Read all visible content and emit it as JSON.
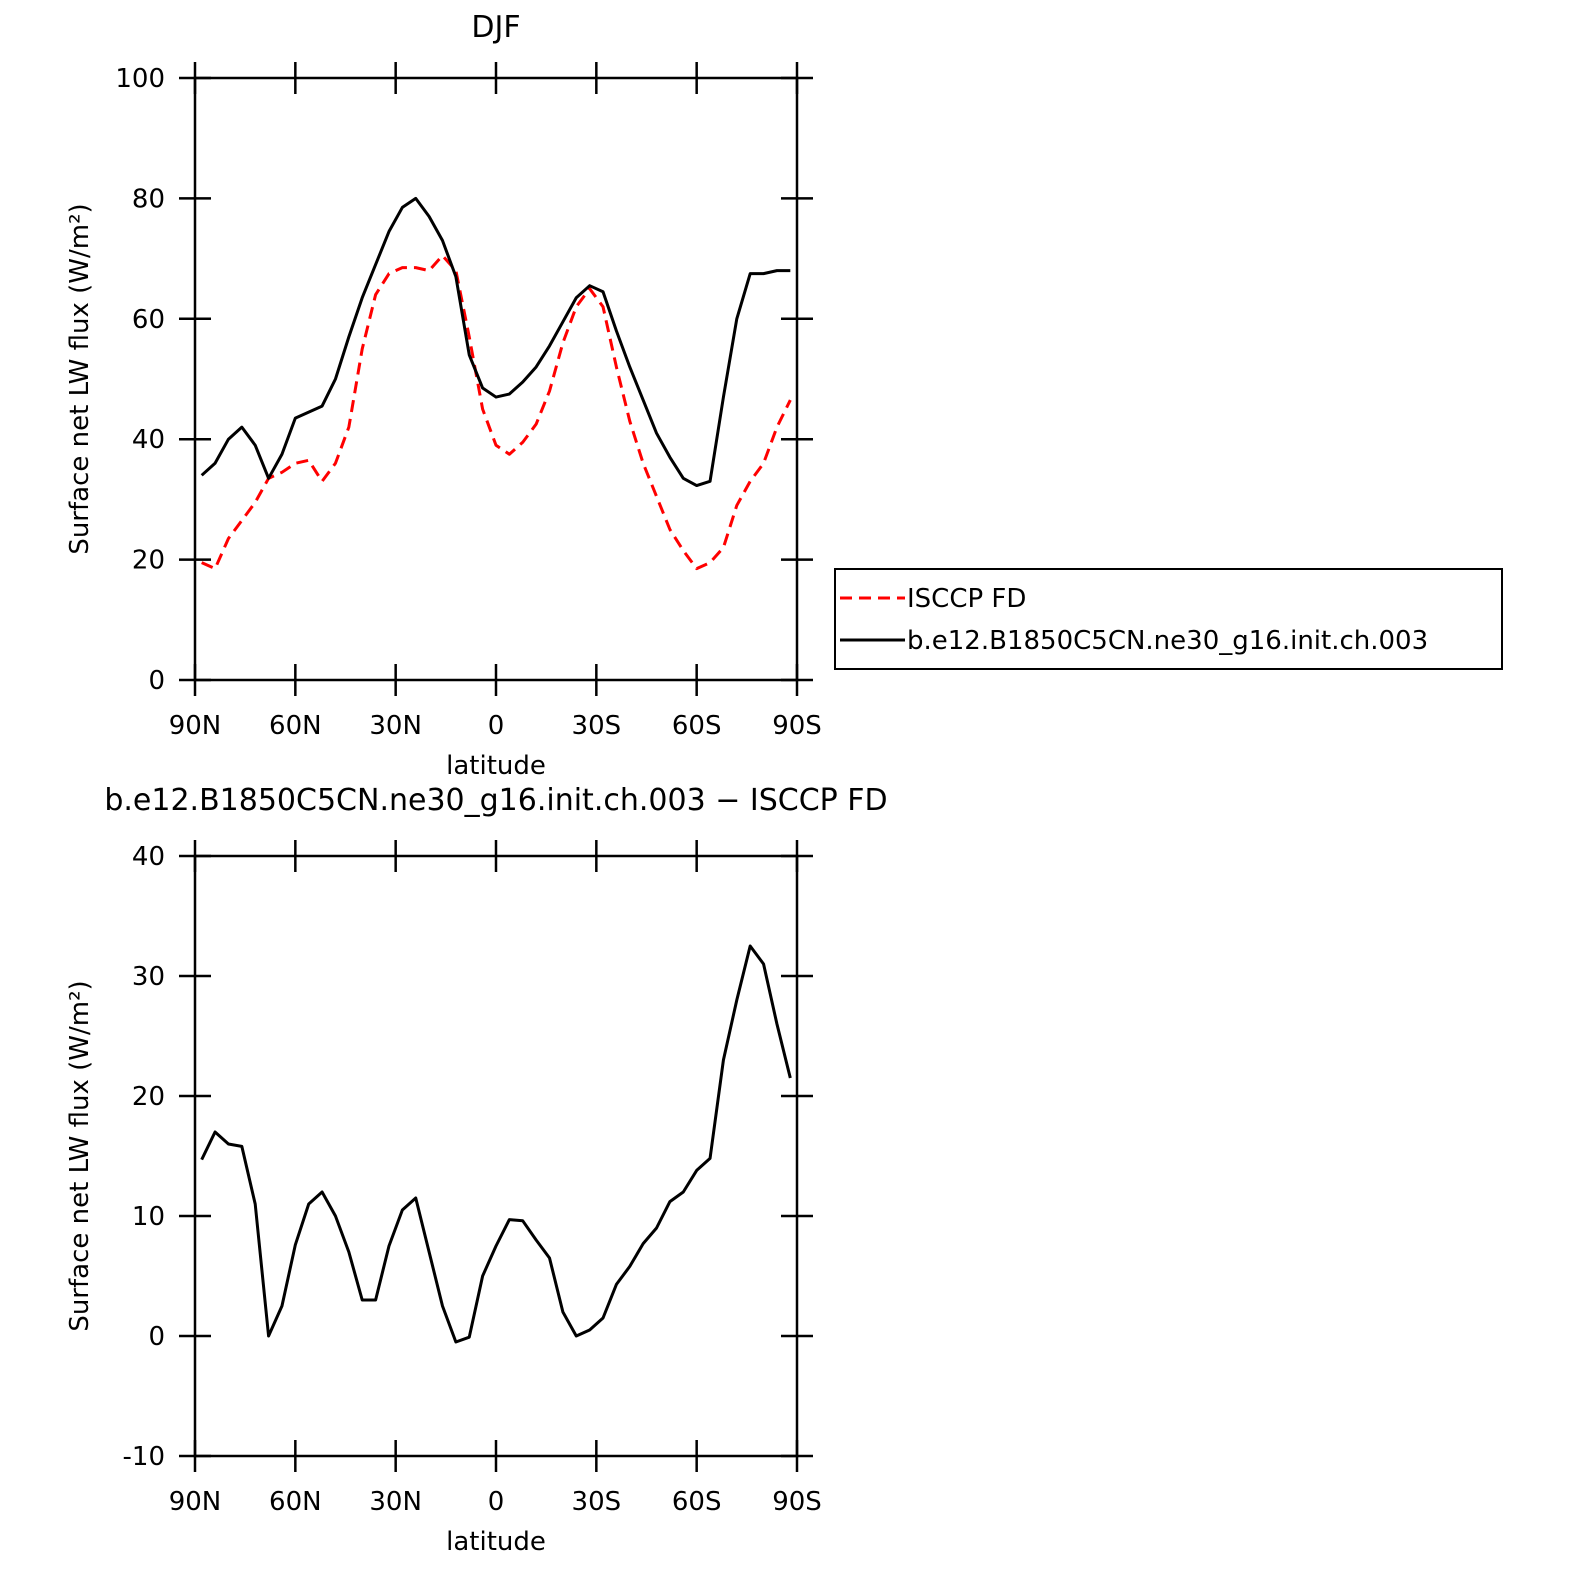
{
  "chart_data": [
    {
      "type": "line",
      "title": "DJF",
      "xlabel": "latitude",
      "ylabel": "Surface net LW flux (W/m²)",
      "x": [
        88,
        84,
        80,
        76,
        72,
        68,
        64,
        60,
        56,
        52,
        48,
        44,
        40,
        36,
        32,
        28,
        24,
        20,
        16,
        12,
        8,
        4,
        0,
        -4,
        -8,
        -12,
        -16,
        -20,
        -24,
        -28,
        -32,
        -36,
        -40,
        -44,
        -48,
        -52,
        -56,
        -60,
        -64,
        -68,
        -72,
        -76,
        -80,
        -84,
        -88
      ],
      "xlim": [
        90,
        -90
      ],
      "xticks": [
        {
          "value": 90,
          "label": "90N"
        },
        {
          "value": 60,
          "label": "60N"
        },
        {
          "value": 30,
          "label": "30N"
        },
        0,
        {
          "value": -30,
          "label": "30S"
        },
        {
          "value": -60,
          "label": "60S"
        },
        {
          "value": -90,
          "label": "90S"
        }
      ],
      "ylim": [
        0,
        100
      ],
      "yticks": [
        0,
        20,
        40,
        60,
        80,
        100
      ],
      "series": [
        {
          "name": "ISCCP FD",
          "color": "#ff0000",
          "dashed": true,
          "values": [
            19.5,
            18.5,
            23.5,
            26.5,
            29.5,
            33.5,
            34.5,
            36,
            36.5,
            33,
            36,
            42,
            55,
            64,
            67.5,
            68.5,
            68.5,
            68,
            70.5,
            68,
            57,
            45,
            39,
            37.5,
            39.5,
            42.5,
            48,
            56,
            62,
            65,
            62,
            52,
            43,
            36,
            30.5,
            25,
            21.5,
            18.5,
            19.5,
            22,
            29,
            33,
            36,
            42,
            46.5
          ]
        },
        {
          "name": "b.e12.B1850C5CN.ne30_g16.init.ch.003",
          "color": "#000000",
          "dashed": false,
          "values": [
            34,
            36,
            40,
            42,
            39,
            33.5,
            37.5,
            43.5,
            44.5,
            45.5,
            50,
            57,
            63.5,
            69,
            74.5,
            78.5,
            80,
            77,
            73,
            67,
            54,
            48.5,
            47,
            47.5,
            49.5,
            52,
            55.5,
            59.5,
            63.5,
            65.5,
            64.5,
            58,
            52,
            46.5,
            41,
            37,
            33.5,
            32.3,
            33,
            47,
            60,
            67.5,
            67.5,
            68,
            68
          ]
        }
      ]
    },
    {
      "type": "line",
      "title": "b.e12.B1850C5CN.ne30_g16.init.ch.003 − ISCCP FD",
      "xlabel": "latitude",
      "ylabel": "Surface net LW flux (W/m²)",
      "x": [
        88,
        84,
        80,
        76,
        72,
        68,
        64,
        60,
        56,
        52,
        48,
        44,
        40,
        36,
        32,
        28,
        24,
        20,
        16,
        12,
        8,
        4,
        0,
        -4,
        -8,
        -12,
        -16,
        -20,
        -24,
        -28,
        -32,
        -36,
        -40,
        -44,
        -48,
        -52,
        -56,
        -60,
        -64,
        -68,
        -72,
        -76,
        -80,
        -84,
        -88
      ],
      "xlim": [
        90,
        -90
      ],
      "xticks": [
        {
          "value": 90,
          "label": "90N"
        },
        {
          "value": 60,
          "label": "60N"
        },
        {
          "value": 30,
          "label": "30N"
        },
        0,
        {
          "value": -30,
          "label": "30S"
        },
        {
          "value": -60,
          "label": "60S"
        },
        {
          "value": -90,
          "label": "90S"
        }
      ],
      "ylim": [
        -10,
        40
      ],
      "yticks": [
        -10,
        0,
        10,
        20,
        30,
        40
      ],
      "series": [
        {
          "color": "#000000",
          "dashed": false,
          "values": [
            14.7,
            17,
            16,
            15.8,
            11,
            0,
            2.5,
            7.6,
            11,
            12,
            10,
            7,
            3,
            3,
            7.5,
            10.5,
            11.5,
            7,
            2.5,
            -0.5,
            -0.1,
            5,
            7.5,
            9.7,
            9.6,
            8,
            6.5,
            2,
            0,
            0.5,
            1.5,
            4.3,
            5.8,
            7.7,
            9,
            11.2,
            12,
            13.8,
            14.8,
            23,
            28,
            32.5,
            31,
            26,
            21.5
          ]
        }
      ]
    }
  ]
}
